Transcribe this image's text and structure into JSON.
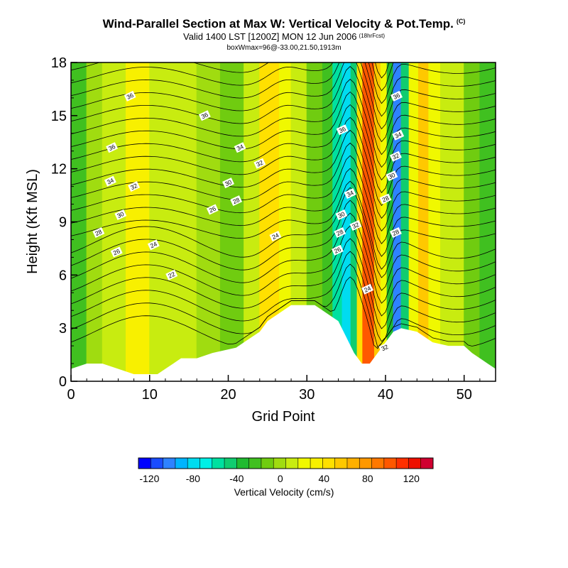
{
  "header": {
    "title": "Wind-Parallel Section at Max W: Vertical Velocity & Pot.Temp.",
    "title_badge": "(C)",
    "subtitle": "Valid 1400 LST [1200Z] MON 12 Jun 2006",
    "subtitle_badge": "(18hrFcst)",
    "info": "boxWmax=96@-33.00,21.50,1913m"
  },
  "chart_data": {
    "type": "heatmap",
    "xlabel": "Grid Point",
    "ylabel": "Height (Kft MSL)",
    "xlim": [
      0,
      54
    ],
    "ylim": [
      0,
      18
    ],
    "x_ticks": [
      0,
      10,
      20,
      30,
      40,
      50
    ],
    "y_ticks": [
      0,
      3,
      6,
      9,
      12,
      15,
      18
    ],
    "grid": false,
    "legend": "bottom",
    "colorbar": {
      "title": "Vertical Velocity (cm/s)",
      "ticks": [
        -120,
        -80,
        -40,
        0,
        40,
        80,
        120
      ],
      "tick_labels": [
        "-120",
        "-80",
        "-40",
        "0",
        "40",
        "80",
        "120"
      ],
      "range": [
        -130,
        140
      ],
      "colors": [
        "#0000ff",
        "#1a4cff",
        "#2e82ff",
        "#00b4ff",
        "#00dcf0",
        "#00f0e6",
        "#00e0a0",
        "#10cc70",
        "#20bb30",
        "#40c020",
        "#70cc10",
        "#a0dc10",
        "#c8ec10",
        "#f0f800",
        "#f8f000",
        "#ffe000",
        "#ffc800",
        "#ffb000",
        "#ff9800",
        "#ff7800",
        "#ff5800",
        "#ff3000",
        "#ee1000",
        "#d00030"
      ]
    },
    "terrain_kft": [
      [
        0,
        0.7
      ],
      [
        2,
        1.0
      ],
      [
        4,
        1.0
      ],
      [
        6,
        0.7
      ],
      [
        8,
        0.4
      ],
      [
        11,
        0.4
      ],
      [
        12,
        0.7
      ],
      [
        13,
        1.0
      ],
      [
        14,
        1.3
      ],
      [
        16,
        1.3
      ],
      [
        18,
        1.6
      ],
      [
        21,
        1.9
      ],
      [
        22,
        2.2
      ],
      [
        24,
        2.8
      ],
      [
        25,
        3.4
      ],
      [
        26,
        3.7
      ],
      [
        27,
        4.0
      ],
      [
        28,
        4.3
      ],
      [
        31,
        4.3
      ],
      [
        32,
        4.0
      ],
      [
        33,
        3.7
      ],
      [
        34,
        3.4
      ],
      [
        35,
        2.5
      ],
      [
        36,
        1.6
      ],
      [
        37,
        1.0
      ],
      [
        38,
        1.0
      ],
      [
        39,
        1.6
      ],
      [
        40,
        2.2
      ],
      [
        41,
        2.8
      ],
      [
        42,
        3.0
      ],
      [
        44,
        2.8
      ],
      [
        45,
        2.5
      ],
      [
        46,
        2.2
      ],
      [
        48,
        2.0
      ],
      [
        50,
        2.0
      ],
      [
        51,
        1.6
      ],
      [
        52,
        1.3
      ],
      [
        53,
        1.0
      ],
      [
        54,
        0.7
      ]
    ],
    "velocity_bands": [
      {
        "x": [
          0,
          2
        ],
        "w": -25
      },
      {
        "x": [
          2,
          4
        ],
        "w": -5
      },
      {
        "x": [
          4,
          5.5
        ],
        "w": 5
      },
      {
        "x": [
          5.5,
          7
        ],
        "w": 15
      },
      {
        "x": [
          7,
          10
        ],
        "w": 35
      },
      {
        "x": [
          10,
          12
        ],
        "w": 15
      },
      {
        "x": [
          12,
          16
        ],
        "w": 5
      },
      {
        "x": [
          16,
          19
        ],
        "w": -5
      },
      {
        "x": [
          19,
          22
        ],
        "w": -10
      },
      {
        "x": [
          22,
          24
        ],
        "w": 5
      },
      {
        "x": [
          24,
          26.5
        ],
        "w": 40
      },
      {
        "x": [
          26.5,
          28
        ],
        "w": 25
      },
      {
        "x": [
          28,
          30
        ],
        "w": 5
      },
      {
        "x": [
          30,
          32
        ],
        "w": -10
      },
      {
        "x": [
          32,
          33.3
        ],
        "w": -20
      },
      {
        "x": [
          33.3,
          34.5
        ],
        "w": -55
      },
      {
        "x": [
          34.5,
          35.6
        ],
        "w": -75
      },
      {
        "x": [
          35.6,
          36.4
        ],
        "w": -45
      },
      {
        "x": [
          36.4,
          37.1
        ],
        "w": 45
      },
      {
        "x": [
          37.1,
          38.6
        ],
        "w": 96
      },
      {
        "x": [
          38.6,
          39.4
        ],
        "w": 60
      },
      {
        "x": [
          39.4,
          40.2
        ],
        "w": 20
      },
      {
        "x": [
          40.2,
          41.0
        ],
        "w": -40
      },
      {
        "x": [
          41.0,
          42.0
        ],
        "w": -100
      },
      {
        "x": [
          42.0,
          43.0
        ],
        "w": -50
      },
      {
        "x": [
          43.0,
          44.2
        ],
        "w": 20
      },
      {
        "x": [
          44.2,
          45.5
        ],
        "w": 50
      },
      {
        "x": [
          45.5,
          47
        ],
        "w": 25
      },
      {
        "x": [
          47,
          50
        ],
        "w": 5
      },
      {
        "x": [
          50,
          52
        ],
        "w": -10
      },
      {
        "x": [
          52,
          54
        ],
        "w": -25
      }
    ],
    "theta_contour_labels": [
      {
        "text": "36",
        "x": 7.5,
        "y": 16.1
      },
      {
        "text": "36",
        "x": 17.0,
        "y": 15.0
      },
      {
        "text": "36",
        "x": 5.2,
        "y": 13.2
      },
      {
        "text": "34",
        "x": 21.5,
        "y": 13.2
      },
      {
        "text": "32",
        "x": 24.0,
        "y": 12.3
      },
      {
        "text": "34",
        "x": 5.0,
        "y": 11.3
      },
      {
        "text": "32",
        "x": 8.0,
        "y": 11.0
      },
      {
        "text": "30",
        "x": 20.0,
        "y": 11.2
      },
      {
        "text": "28",
        "x": 21.0,
        "y": 10.2
      },
      {
        "text": "26",
        "x": 18.0,
        "y": 9.7
      },
      {
        "text": "30",
        "x": 6.3,
        "y": 9.4
      },
      {
        "text": "28",
        "x": 3.5,
        "y": 8.4
      },
      {
        "text": "26",
        "x": 5.8,
        "y": 7.3
      },
      {
        "text": "24",
        "x": 10.5,
        "y": 7.7
      },
      {
        "text": "24",
        "x": 26.0,
        "y": 8.2
      },
      {
        "text": "22",
        "x": 12.8,
        "y": 6.0
      },
      {
        "text": "36",
        "x": 34.5,
        "y": 14.2
      },
      {
        "text": "36",
        "x": 41.4,
        "y": 16.1
      },
      {
        "text": "34",
        "x": 41.6,
        "y": 13.9
      },
      {
        "text": "32",
        "x": 41.3,
        "y": 12.7
      },
      {
        "text": "30",
        "x": 40.8,
        "y": 11.6
      },
      {
        "text": "34",
        "x": 35.5,
        "y": 10.6
      },
      {
        "text": "28",
        "x": 40.0,
        "y": 10.3
      },
      {
        "text": "30",
        "x": 34.4,
        "y": 9.4
      },
      {
        "text": "32",
        "x": 36.2,
        "y": 8.8
      },
      {
        "text": "28",
        "x": 34.2,
        "y": 8.4
      },
      {
        "text": "28",
        "x": 41.3,
        "y": 8.4
      },
      {
        "text": "26",
        "x": 33.9,
        "y": 7.4
      },
      {
        "text": "24",
        "x": 37.7,
        "y": 5.2
      },
      {
        "text": "32",
        "x": 39.9,
        "y": 1.9
      }
    ]
  }
}
